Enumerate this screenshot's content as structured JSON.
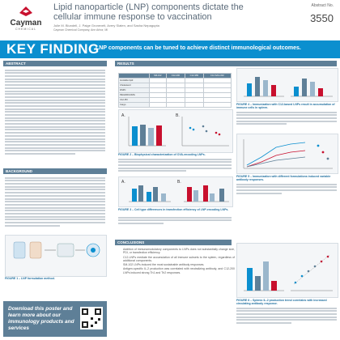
{
  "header": {
    "logo_text": "Cayman",
    "logo_sub": "CHEMICAL",
    "title": "Lipid nanoparticle (LNP) components dictate the cellular immune response to vaccination",
    "authors": "Julie M. Blundell, J. Paige Gronevelt, Avery Slaten, and Sasha Nepagupta",
    "affiliation": "Cayman Chemical Company, Ann Arbor, MI",
    "abstract_label": "Abstract No.",
    "abstract_number": "3550"
  },
  "key_finding": {
    "title": "KEY FINDING",
    "text": "LNP components can be tuned to achieve distinct immunological outcomes."
  },
  "sections": {
    "abstract": "ABSTRACT",
    "background": "BACKGROUND",
    "results": "RESULTS",
    "conclusions": "CONCLUSIONS"
  },
  "table": {
    "headers": [
      "",
      "SM-102",
      "C12-200",
      "C12-389",
      "C12-SAG-002"
    ],
    "rows": [
      [
        "Ionizable lipid",
        "",
        "",
        "",
        ""
      ],
      [
        "Cholesterol",
        "",
        "",
        "",
        ""
      ],
      [
        "DSPC",
        "",
        "",
        "",
        ""
      ],
      [
        "PEG2000-DMG",
        "",
        "",
        "",
        ""
      ],
      [
        "C12-Phl",
        "",
        "",
        "",
        ""
      ],
      [
        "Cargo",
        "",
        "",
        "",
        ""
      ]
    ]
  },
  "captions": {
    "fig1": "FIGURE 1 – LNP formulation method.",
    "fig2": "FIGURE 2 – Biophysical characterization of OVA-encoding LNPs.",
    "fig3": "FIGURE 3 – Cell type differences in transfection efficiency of LNP-encoding LNPs.",
    "fig4": "FIGURE 4 – Immunization with C12-based LNPs result in accumulation of immune cells in spleen.",
    "fig5": "FIGURE 5 – Immunization with different formulations induced variable antibody responses.",
    "fig6": "FIGURE 6 – Splenic IL-2 production trend correlates with increased circulating antibody response."
  },
  "download": "Download this poster and learn more about our immunology products and services",
  "conclusions": [
    "Addition of immunomodulatory components to LNPs does not substantially change size, PDI, or transfection efficiency.",
    "C12-LNPs mediate the accumulation of all immune subsets to the spleen, regardless of additional components.",
    "SM-102 LNPs induced the most sustainable antibody responses.",
    "Antigen-specific IL-2 production was correlated with neutralizing antibody, and C12-200 LNPs induced strong Th1 and Th2 responses."
  ],
  "colors": {
    "brand_blue": "#0b8fcf",
    "section_gray": "#5e7f97",
    "logo_red": "#c8102e"
  }
}
